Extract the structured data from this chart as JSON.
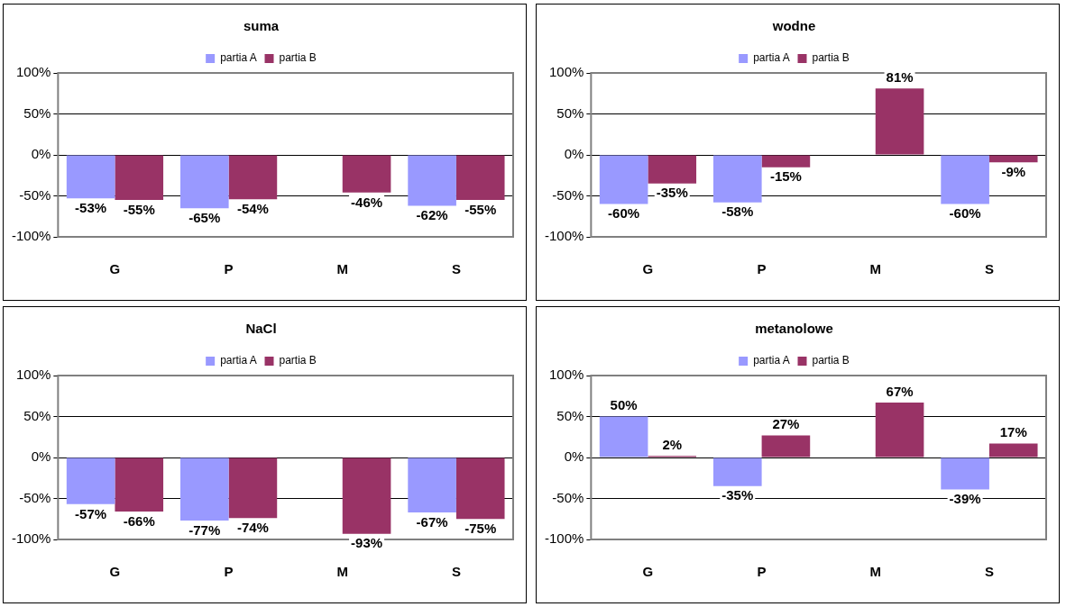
{
  "chart_data": [
    {
      "type": "bar",
      "title": "suma",
      "categories": [
        "G",
        "P",
        "M",
        "S"
      ],
      "series": [
        {
          "name": "partia A",
          "color": "#9999ff",
          "values": [
            -53,
            -65,
            null,
            -62
          ],
          "value_labels": [
            "-53%",
            "-65%",
            null,
            "-62%"
          ]
        },
        {
          "name": "partia B",
          "color": "#993366",
          "values": [
            -55,
            -54,
            -46,
            -55
          ],
          "value_labels": [
            "-55%",
            "-54%",
            "-46%",
            "-55%"
          ]
        }
      ],
      "ylim": [
        -100,
        100
      ],
      "yticks": [
        {
          "value": -100,
          "label": "-100%"
        },
        {
          "value": -50,
          "label": "-50%"
        },
        {
          "value": 0,
          "label": "0%"
        },
        {
          "value": 50,
          "label": "50%"
        },
        {
          "value": 100,
          "label": "100%"
        }
      ],
      "grid": "y",
      "legend": "top"
    },
    {
      "type": "bar",
      "title": "wodne",
      "categories": [
        "G",
        "P",
        "M",
        "S"
      ],
      "series": [
        {
          "name": "partia A",
          "color": "#9999ff",
          "values": [
            -60,
            -58,
            null,
            -60
          ],
          "value_labels": [
            "-60%",
            "-58%",
            null,
            "-60%"
          ]
        },
        {
          "name": "partia B",
          "color": "#993366",
          "values": [
            -35,
            -15,
            81,
            -9
          ],
          "value_labels": [
            "-35%",
            "-15%",
            "81%",
            "-9%"
          ]
        }
      ],
      "ylim": [
        -100,
        100
      ],
      "yticks": [
        {
          "value": -100,
          "label": "-100%"
        },
        {
          "value": -50,
          "label": "-50%"
        },
        {
          "value": 0,
          "label": "0%"
        },
        {
          "value": 50,
          "label": "50%"
        },
        {
          "value": 100,
          "label": "100%"
        }
      ],
      "grid": "y",
      "legend": "top"
    },
    {
      "type": "bar",
      "title": "NaCl",
      "categories": [
        "G",
        "P",
        "M",
        "S"
      ],
      "series": [
        {
          "name": "partia A",
          "color": "#9999ff",
          "values": [
            -57,
            -77,
            null,
            -67
          ],
          "value_labels": [
            "-57%",
            "-77%",
            null,
            "-67%"
          ]
        },
        {
          "name": "partia B",
          "color": "#993366",
          "values": [
            -66,
            -74,
            -93,
            -75
          ],
          "value_labels": [
            "-66%",
            "-74%",
            "-93%",
            "-75%"
          ]
        }
      ],
      "ylim": [
        -100,
        100
      ],
      "yticks": [
        {
          "value": -100,
          "label": "-100%"
        },
        {
          "value": -50,
          "label": "-50%"
        },
        {
          "value": 0,
          "label": "0%"
        },
        {
          "value": 50,
          "label": "50%"
        },
        {
          "value": 100,
          "label": "100%"
        }
      ],
      "grid": "y",
      "legend": "top"
    },
    {
      "type": "bar",
      "title": "metanolowe",
      "categories": [
        "G",
        "P",
        "M",
        "S"
      ],
      "series": [
        {
          "name": "partia A",
          "color": "#9999ff",
          "values": [
            50,
            -35,
            null,
            -39
          ],
          "value_labels": [
            "50%",
            "-35%",
            null,
            "-39%"
          ]
        },
        {
          "name": "partia B",
          "color": "#993366",
          "values": [
            2,
            27,
            67,
            17
          ],
          "value_labels": [
            "2%",
            "27%",
            "67%",
            "17%"
          ]
        }
      ],
      "ylim": [
        -100,
        100
      ],
      "yticks": [
        {
          "value": -100,
          "label": "-100%"
        },
        {
          "value": -50,
          "label": "-50%"
        },
        {
          "value": 0,
          "label": "0%"
        },
        {
          "value": 50,
          "label": "50%"
        },
        {
          "value": 100,
          "label": "100%"
        }
      ],
      "grid": "y",
      "legend": "top"
    }
  ]
}
